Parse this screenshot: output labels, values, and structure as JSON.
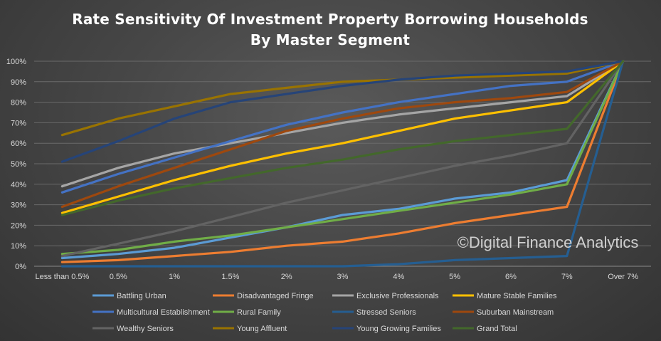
{
  "chart_data": {
    "type": "line",
    "title": "Rate Sensitivity  Of Investment Property Borrowing Households",
    "subtitle": "By Master Segment",
    "categories": [
      "Less than 0.5%",
      "0.5%",
      "1%",
      "1.5%",
      "2%",
      "3%",
      "4%",
      "5%",
      "6%",
      "7%",
      "Over 7%"
    ],
    "ylim": [
      0,
      100
    ],
    "yticks": [
      "0%",
      "10%",
      "20%",
      "30%",
      "40%",
      "50%",
      "60%",
      "70%",
      "80%",
      "90%",
      "100%"
    ],
    "grid": true,
    "legend_position": "bottom",
    "annotation": "©Digital Finance Analytics",
    "series": [
      {
        "name": "Battling Urban",
        "color": "#5b9bd5",
        "values": [
          4,
          6,
          9,
          14,
          19,
          25,
          28,
          33,
          36,
          42,
          100
        ]
      },
      {
        "name": "Disadvantaged Fringe",
        "color": "#ed7d31",
        "values": [
          2,
          3,
          5,
          7,
          10,
          12,
          16,
          21,
          25,
          29,
          100
        ]
      },
      {
        "name": "Exclusive Professionals",
        "color": "#a5a5a5",
        "values": [
          39,
          48,
          55,
          60,
          65,
          70,
          74,
          77,
          80,
          83,
          100
        ]
      },
      {
        "name": "Mature Stable Families",
        "color": "#ffc000",
        "values": [
          26,
          34,
          42,
          49,
          55,
          60,
          66,
          72,
          76,
          80,
          100
        ]
      },
      {
        "name": "Multicultural Establishment",
        "color": "#4472c4",
        "values": [
          36,
          45,
          53,
          61,
          69,
          75,
          80,
          84,
          88,
          90,
          100
        ]
      },
      {
        "name": "Rural Family",
        "color": "#70ad47",
        "values": [
          6,
          8,
          12,
          15,
          19,
          23,
          27,
          31,
          35,
          40,
          100
        ]
      },
      {
        "name": "Stressed Seniors",
        "color": "#255e91",
        "values": [
          0,
          0,
          0,
          0,
          0,
          0,
          1,
          3,
          4,
          5,
          100
        ]
      },
      {
        "name": "Suburban Mainstream",
        "color": "#9e480e",
        "values": [
          29,
          39,
          48,
          57,
          66,
          72,
          77,
          80,
          82,
          85,
          100
        ]
      },
      {
        "name": "Wealthy Seniors",
        "color": "#636363",
        "values": [
          5,
          11,
          17,
          24,
          31,
          37,
          43,
          49,
          54,
          60,
          100
        ]
      },
      {
        "name": "Young Affluent",
        "color": "#997300",
        "values": [
          64,
          72,
          78,
          84,
          87,
          90,
          91,
          92,
          93,
          94,
          100
        ]
      },
      {
        "name": "Young Growing Families",
        "color": "#264478",
        "values": [
          51,
          61,
          72,
          80,
          84,
          88,
          91,
          93,
          94,
          95,
          100
        ]
      },
      {
        "name": "Grand Total",
        "color": "#43682b",
        "values": [
          25,
          32,
          38,
          43,
          48,
          52,
          57,
          61,
          64,
          67,
          100
        ]
      }
    ]
  }
}
